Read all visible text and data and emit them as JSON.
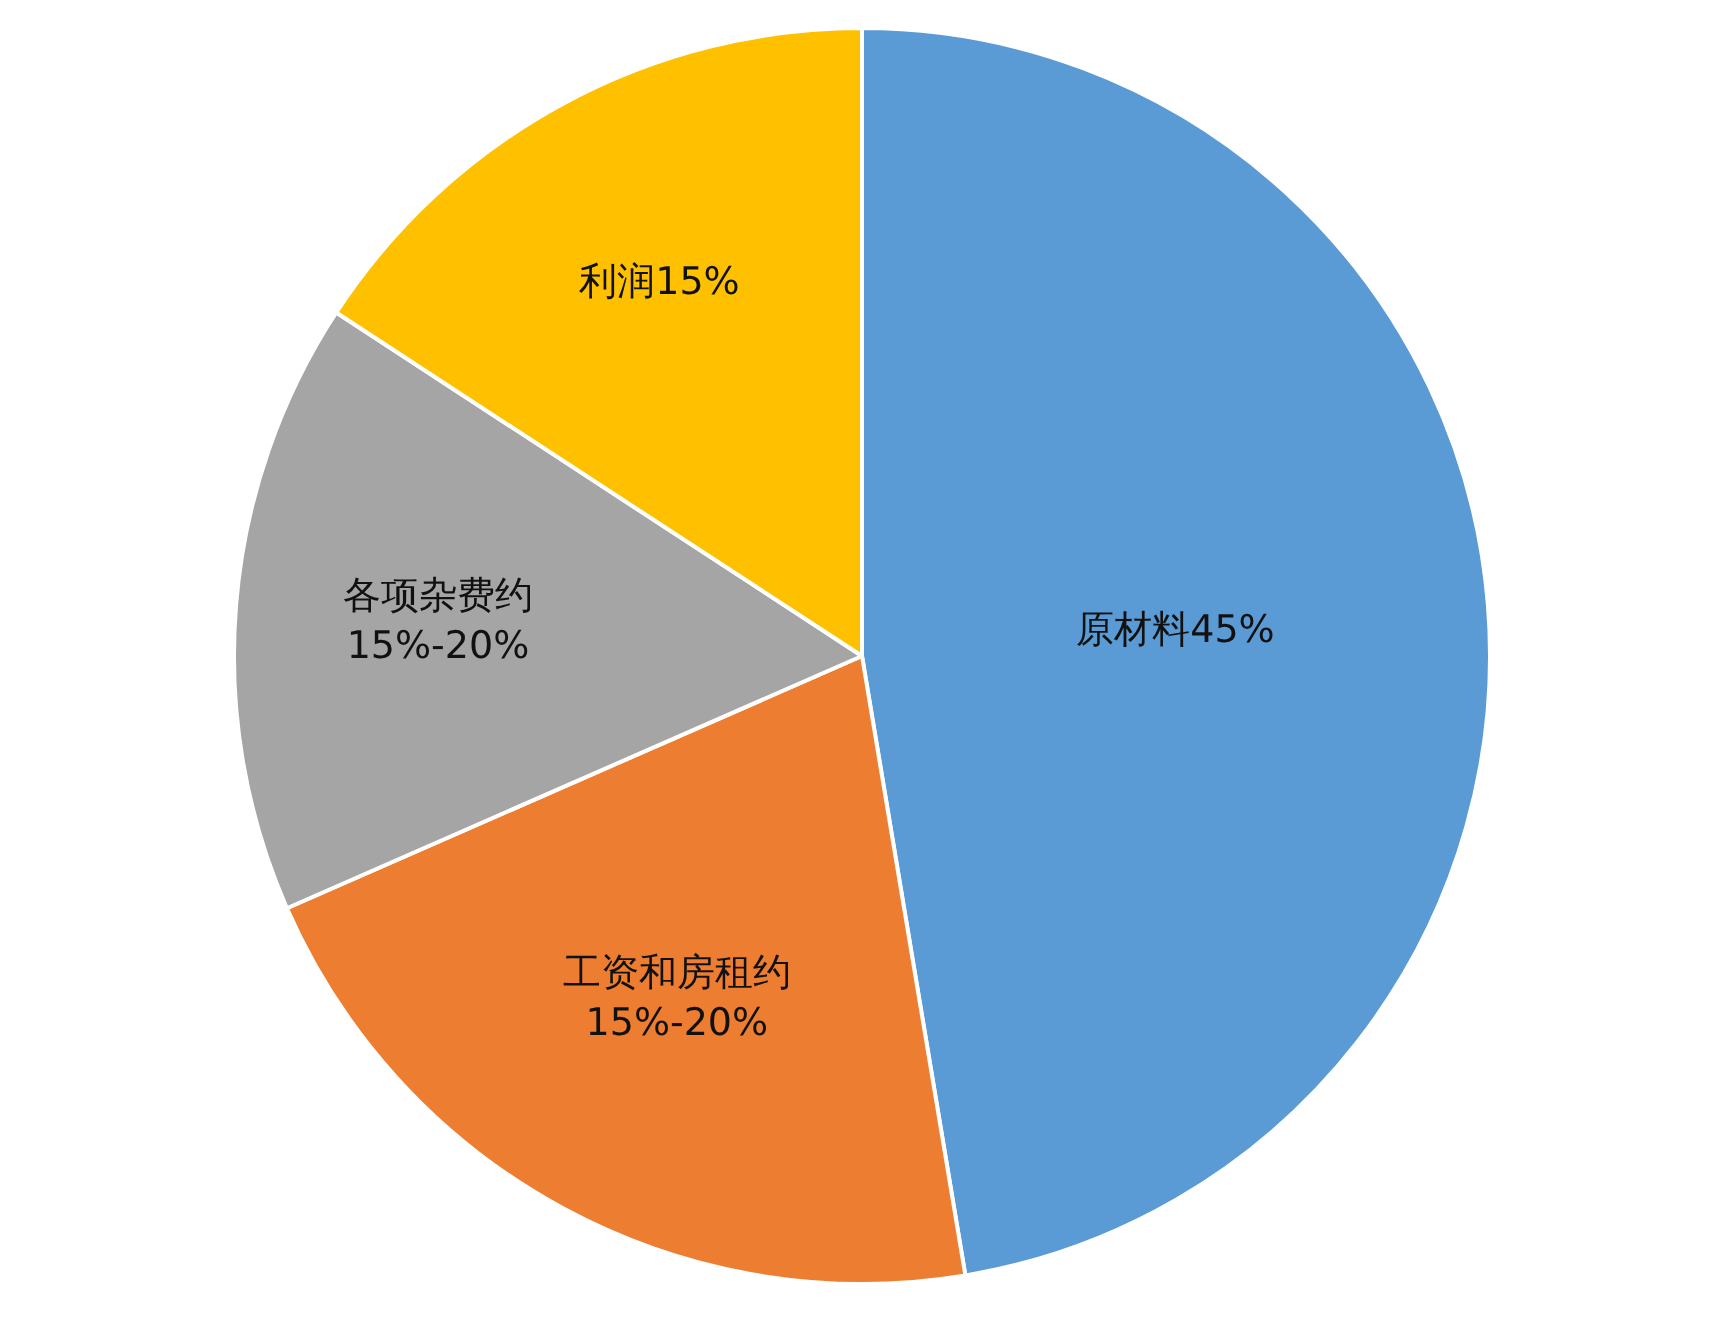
{
  "chart_data": {
    "type": "pie",
    "categories": [
      "原材料45%",
      "工资和房租约\n15%-20%",
      "各项杂费约\n15%-20%",
      "利润15%"
    ],
    "values": [
      45,
      20,
      15,
      15
    ],
    "colors": [
      "#5b9bd5",
      "#ed7d31",
      "#a5a5a5",
      "#ffc000"
    ]
  }
}
